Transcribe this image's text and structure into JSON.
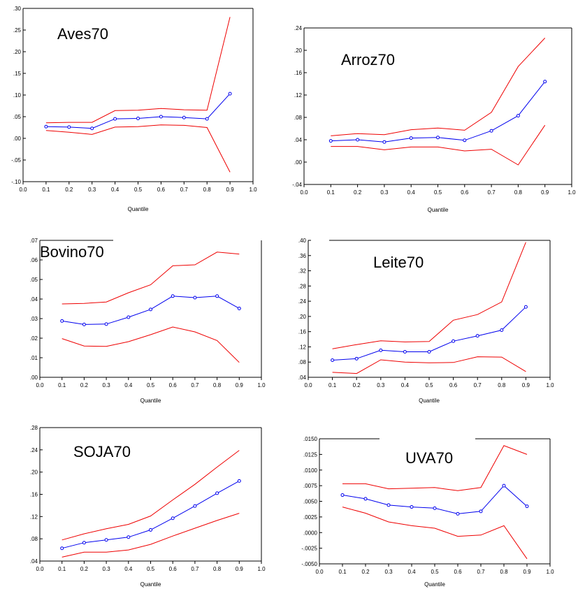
{
  "colors": {
    "estimate": "#0000ee",
    "bounds": "#ee0000",
    "axis": "#000000"
  },
  "chart_data": [
    {
      "type": "line",
      "title": "Aves70",
      "xlabel": "Quantile",
      "xlim": [
        0.0,
        1.0
      ],
      "ylim": [
        -0.1,
        0.3
      ],
      "xticks": [
        "0.0",
        "0.1",
        "0.2",
        "0.3",
        "0.4",
        "0.5",
        "0.6",
        "0.7",
        "0.8",
        "0.9",
        "1.0"
      ],
      "yticks": [
        ".30",
        ".25",
        ".20",
        ".15",
        ".10",
        ".05",
        ".00",
        "-.05",
        "-.10"
      ],
      "x": [
        0.1,
        0.2,
        0.3,
        0.4,
        0.5,
        0.6,
        0.7,
        0.8,
        0.9
      ],
      "series": [
        {
          "role": "upper",
          "values": [
            0.036,
            0.037,
            0.037,
            0.064,
            0.065,
            0.069,
            0.066,
            0.065,
            0.28
          ]
        },
        {
          "role": "estimate",
          "values": [
            0.027,
            0.026,
            0.023,
            0.045,
            0.046,
            0.05,
            0.048,
            0.045,
            0.103
          ]
        },
        {
          "role": "lower",
          "values": [
            0.018,
            0.014,
            0.009,
            0.026,
            0.027,
            0.031,
            0.03,
            0.025,
            -0.078
          ]
        }
      ]
    },
    {
      "type": "line",
      "title": "Arroz70",
      "xlabel": "Quantile",
      "xlim": [
        0.0,
        1.0
      ],
      "ylim": [
        -0.04,
        0.24
      ],
      "xticks": [
        "0.0",
        "0.1",
        "0.2",
        "0.3",
        "0.4",
        "0.5",
        "0.6",
        "0.7",
        "0.8",
        "0.9",
        "1.0"
      ],
      "yticks": [
        ".24",
        ".20",
        ".16",
        ".12",
        ".08",
        ".04",
        ".00",
        "-.04"
      ],
      "x": [
        0.1,
        0.2,
        0.3,
        0.4,
        0.5,
        0.6,
        0.7,
        0.8,
        0.9
      ],
      "series": [
        {
          "role": "upper",
          "values": [
            0.047,
            0.051,
            0.049,
            0.058,
            0.061,
            0.057,
            0.089,
            0.171,
            0.222
          ]
        },
        {
          "role": "estimate",
          "values": [
            0.038,
            0.04,
            0.036,
            0.043,
            0.044,
            0.039,
            0.056,
            0.083,
            0.144
          ]
        },
        {
          "role": "lower",
          "values": [
            0.028,
            0.028,
            0.022,
            0.027,
            0.027,
            0.02,
            0.023,
            -0.005,
            0.066
          ]
        }
      ]
    },
    {
      "type": "line",
      "title": "Bovino70",
      "xlabel": "Quantile",
      "xlim": [
        0.0,
        1.0
      ],
      "ylim": [
        0.0,
        0.07
      ],
      "xticks": [
        "0.0",
        "0.1",
        "0.2",
        "0.3",
        "0.4",
        "0.5",
        "0.6",
        "0.7",
        "0.8",
        "0.9",
        "1.0"
      ],
      "yticks": [
        ".07",
        ".06",
        ".05",
        ".04",
        ".03",
        ".02",
        ".01",
        ".00"
      ],
      "x": [
        0.1,
        0.2,
        0.3,
        0.4,
        0.5,
        0.6,
        0.7,
        0.8,
        0.9
      ],
      "series": [
        {
          "role": "upper",
          "values": [
            0.0375,
            0.0378,
            0.0385,
            0.0432,
            0.0473,
            0.057,
            0.0575,
            0.064,
            0.063
          ]
        },
        {
          "role": "estimate",
          "values": [
            0.0288,
            0.027,
            0.0272,
            0.0307,
            0.0347,
            0.0415,
            0.0407,
            0.0415,
            0.0352
          ]
        },
        {
          "role": "lower",
          "values": [
            0.0198,
            0.016,
            0.0158,
            0.0182,
            0.0218,
            0.0257,
            0.0232,
            0.0188,
            0.0076
          ]
        }
      ]
    },
    {
      "type": "line",
      "title": "Leite70",
      "xlabel": "Quantile",
      "xlim": [
        0.0,
        1.0
      ],
      "ylim": [
        0.04,
        0.4
      ],
      "xticks": [
        "0.0",
        "0.1",
        "0.2",
        "0.3",
        "0.4",
        "0.5",
        "0.6",
        "0.7",
        "0.8",
        "0.9",
        "1.0"
      ],
      "yticks": [
        ".40",
        ".36",
        ".32",
        ".28",
        ".24",
        ".20",
        ".16",
        ".12",
        ".08",
        ".04"
      ],
      "x": [
        0.1,
        0.2,
        0.3,
        0.4,
        0.5,
        0.6,
        0.7,
        0.8,
        0.9
      ],
      "series": [
        {
          "role": "upper",
          "values": [
            0.115,
            0.126,
            0.136,
            0.133,
            0.134,
            0.19,
            0.205,
            0.238,
            0.395
          ]
        },
        {
          "role": "estimate",
          "values": [
            0.085,
            0.089,
            0.111,
            0.107,
            0.107,
            0.135,
            0.149,
            0.164,
            0.225
          ]
        },
        {
          "role": "lower",
          "values": [
            0.053,
            0.05,
            0.086,
            0.08,
            0.078,
            0.079,
            0.094,
            0.093,
            0.055
          ]
        }
      ]
    },
    {
      "type": "line",
      "title": "SOJA70",
      "xlabel": "Quantile",
      "xlim": [
        0.0,
        1.0
      ],
      "ylim": [
        0.04,
        0.28
      ],
      "xticks": [
        "0.0",
        "0.1",
        "0.2",
        "0.3",
        "0.4",
        "0.5",
        "0.6",
        "0.7",
        "0.8",
        "0.9",
        "1.0"
      ],
      "yticks": [
        ".28",
        ".24",
        ".20",
        ".16",
        ".12",
        ".08",
        ".04"
      ],
      "x": [
        0.1,
        0.2,
        0.3,
        0.4,
        0.5,
        0.6,
        0.7,
        0.8,
        0.9
      ],
      "series": [
        {
          "role": "upper",
          "values": [
            0.078,
            0.089,
            0.098,
            0.106,
            0.121,
            0.15,
            0.178,
            0.209,
            0.239
          ]
        },
        {
          "role": "estimate",
          "values": [
            0.063,
            0.073,
            0.078,
            0.083,
            0.096,
            0.117,
            0.139,
            0.162,
            0.184
          ]
        },
        {
          "role": "lower",
          "values": [
            0.047,
            0.056,
            0.056,
            0.06,
            0.07,
            0.085,
            0.099,
            0.113,
            0.126
          ]
        }
      ]
    },
    {
      "type": "line",
      "title": "UVA70",
      "xlabel": "Quantile",
      "xlim": [
        0.0,
        1.0
      ],
      "ylim": [
        -0.005,
        0.015
      ],
      "xticks": [
        "0.0",
        "0.1",
        "0.2",
        "0.3",
        "0.4",
        "0.5",
        "0.6",
        "0.7",
        "0.8",
        "0.9",
        "1.0"
      ],
      "yticks": [
        ".0150",
        ".0125",
        ".0100",
        ".0075",
        ".0050",
        ".0025",
        ".0000",
        "-.0025",
        "-.0050"
      ],
      "x": [
        0.1,
        0.2,
        0.3,
        0.4,
        0.5,
        0.6,
        0.7,
        0.8,
        0.9
      ],
      "series": [
        {
          "role": "upper",
          "values": [
            0.0078,
            0.0078,
            0.007,
            0.0071,
            0.0072,
            0.0067,
            0.0072,
            0.0139,
            0.0125
          ]
        },
        {
          "role": "estimate",
          "values": [
            0.006,
            0.0054,
            0.0044,
            0.0041,
            0.0039,
            0.003,
            0.0034,
            0.0075,
            0.0042
          ]
        },
        {
          "role": "lower",
          "values": [
            0.0041,
            0.0031,
            0.0017,
            0.0011,
            0.0007,
            -0.0006,
            -0.0004,
            0.0011,
            -0.0042
          ]
        }
      ]
    }
  ]
}
